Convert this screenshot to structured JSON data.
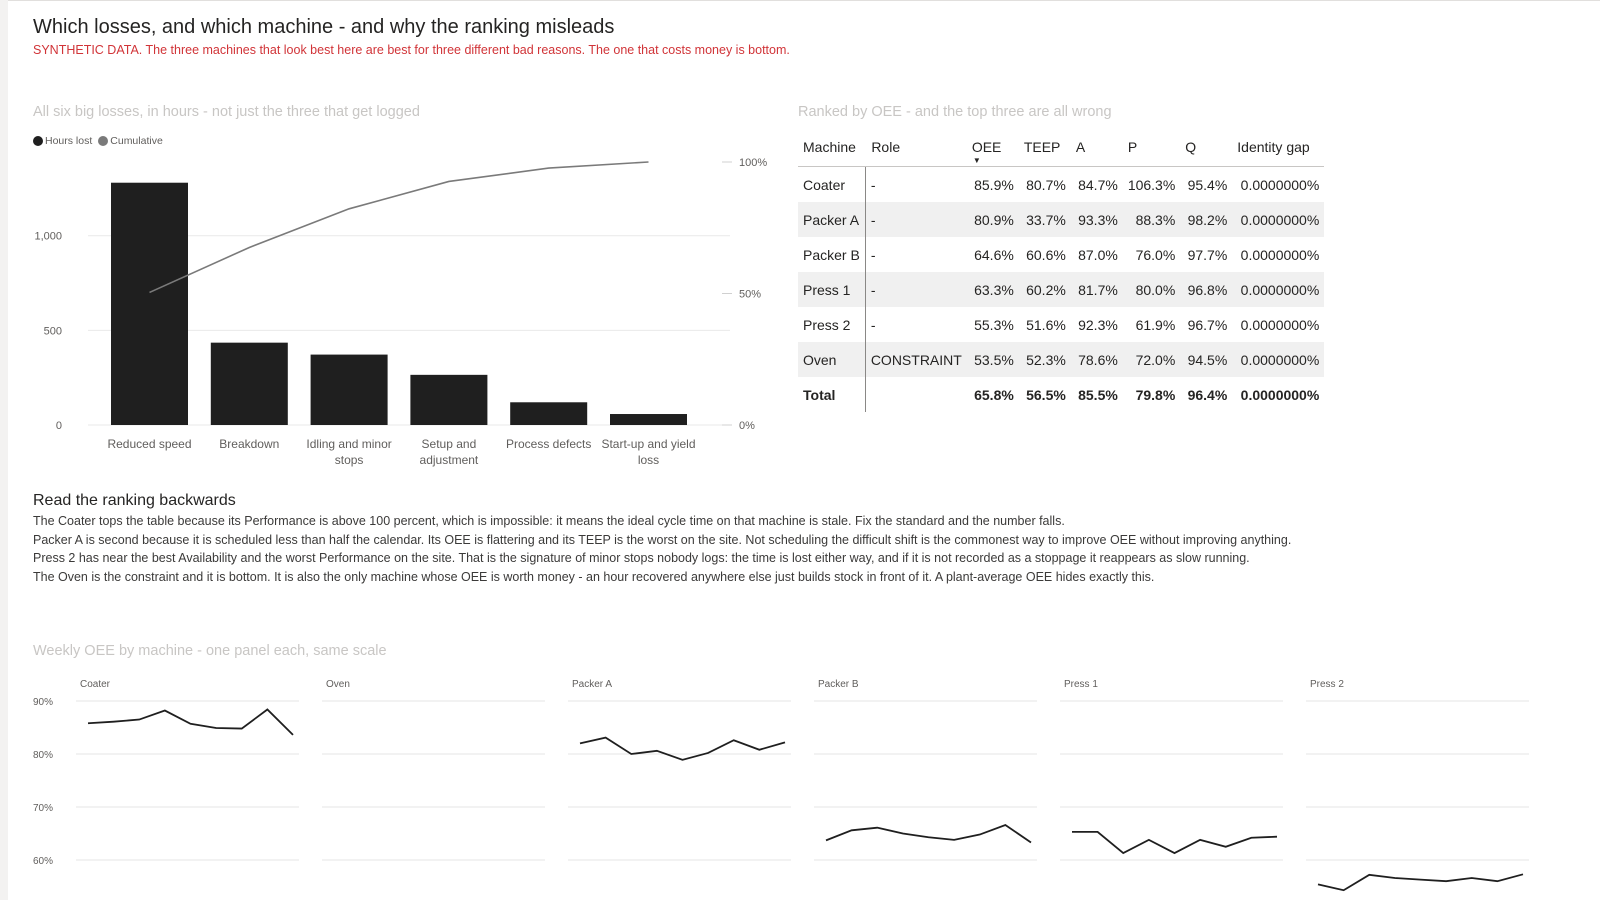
{
  "header": {
    "title": "Which losses, and which machine - and why the ranking misleads",
    "subtitle": "SYNTHETIC DATA. The three machines that look best here are best for three different bad reasons. The one that costs money is bottom."
  },
  "colors": {
    "accent_red": "#d13438",
    "bar": "#1f1f1f",
    "cumulative_line": "#7a7a7a",
    "muted_title": "#c8c6c4",
    "band": "#f0f0f0"
  },
  "table": {
    "title": "Ranked by OEE - and the top three are all wrong",
    "sorted_column": "OEE",
    "sort_direction": "descending",
    "columns": [
      "Machine",
      "Role",
      "OEE",
      "TEEP",
      "A",
      "P",
      "Q",
      "Identity gap"
    ],
    "rows": [
      [
        "Coater",
        "-",
        "85.9%",
        "80.7%",
        "84.7%",
        "106.3%",
        "95.4%",
        "0.0000000%"
      ],
      [
        "Packer A",
        "-",
        "80.9%",
        "33.7%",
        "93.3%",
        "88.3%",
        "98.2%",
        "0.0000000%"
      ],
      [
        "Packer B",
        "-",
        "64.6%",
        "60.6%",
        "87.0%",
        "76.0%",
        "97.7%",
        "0.0000000%"
      ],
      [
        "Press 1",
        "-",
        "63.3%",
        "60.2%",
        "81.7%",
        "80.0%",
        "96.8%",
        "0.0000000%"
      ],
      [
        "Press 2",
        "-",
        "55.3%",
        "51.6%",
        "92.3%",
        "61.9%",
        "96.7%",
        "0.0000000%"
      ],
      [
        "Oven",
        "CONSTRAINT",
        "53.5%",
        "52.3%",
        "78.6%",
        "72.0%",
        "94.5%",
        "0.0000000%"
      ]
    ],
    "total": [
      "Total",
      "",
      "65.8%",
      "56.5%",
      "85.5%",
      "79.8%",
      "96.4%",
      "0.0000000%"
    ]
  },
  "notes": {
    "heading": "Read the ranking backwards",
    "lines": [
      "The Coater tops the table because its Performance is above 100 percent, which is impossible: it means the ideal cycle time on that machine is stale. Fix the standard and the number falls.",
      "Packer A is second because it is scheduled less than half the calendar. Its OEE is flattering and its TEEP is the worst on the site. Not scheduling the difficult shift is the commonest way to improve OEE without improving anything.",
      "Press 2 has near the best Availability and the worst Performance on the site. That is the signature of minor stops nobody logs: the time is lost either way, and if it is not recorded as a stoppage it reappears as slow running.",
      "The Oven is the constraint and it is bottom. It is also the only machine whose OEE is worth money - an hour recovered anywhere else just builds stock in front of it. A plant-average OEE hides exactly this."
    ]
  },
  "chart_data": [
    {
      "type": "bar",
      "title": "All six big losses, in hours - not just the three that get logged",
      "legend": [
        "Hours lost",
        "Cumulative"
      ],
      "legend_position": "top-left",
      "categories": [
        "Reduced speed",
        "Breakdown",
        "Idling and minor stops",
        "Setup and adjustment",
        "Process defects",
        "Start-up and yield loss"
      ],
      "series": [
        {
          "name": "Hours lost",
          "type": "bar",
          "axis": "left",
          "values": [
            1280,
            435,
            372,
            265,
            120,
            58
          ]
        },
        {
          "name": "Cumulative",
          "type": "line",
          "axis": "right",
          "values": [
            50.4,
            67.5,
            82.2,
            92.6,
            97.7,
            100
          ]
        }
      ],
      "y_ticks": [
        "0",
        "500",
        "1,000"
      ],
      "y2_ticks": [
        "0%",
        "50%",
        "100%"
      ],
      "ylim": [
        0,
        1400
      ],
      "y2lim": [
        0,
        100
      ],
      "grid": true
    },
    {
      "type": "line",
      "title": "Weekly OEE by machine - one panel each, same scale",
      "layout": "small multiples",
      "y_ticks": [
        "60%",
        "70%",
        "80%",
        "90%"
      ],
      "ylim": [
        58,
        92
      ],
      "panels": [
        {
          "name": "Coater",
          "values": [
            85.8,
            86.1,
            86.5,
            88.2,
            85.7,
            84.9,
            84.8,
            88.4,
            83.6
          ]
        },
        {
          "name": "Oven",
          "values": []
        },
        {
          "name": "Packer A",
          "values": [
            82.0,
            83.1,
            80.0,
            80.6,
            78.9,
            80.2,
            82.6,
            80.8,
            82.2
          ]
        },
        {
          "name": "Packer B",
          "values": [
            63.7,
            65.6,
            66.1,
            65.0,
            64.3,
            63.8,
            64.8,
            66.6,
            63.3
          ]
        },
        {
          "name": "Press 1",
          "values": [
            65.3,
            65.3,
            61.3,
            63.8,
            61.3,
            63.8,
            62.5,
            64.2,
            64.4
          ]
        },
        {
          "name": "Press 2",
          "values": [
            55.4,
            54.3,
            57.2,
            56.6,
            56.3,
            56.0,
            56.6,
            56.0,
            57.3
          ]
        }
      ]
    }
  ]
}
